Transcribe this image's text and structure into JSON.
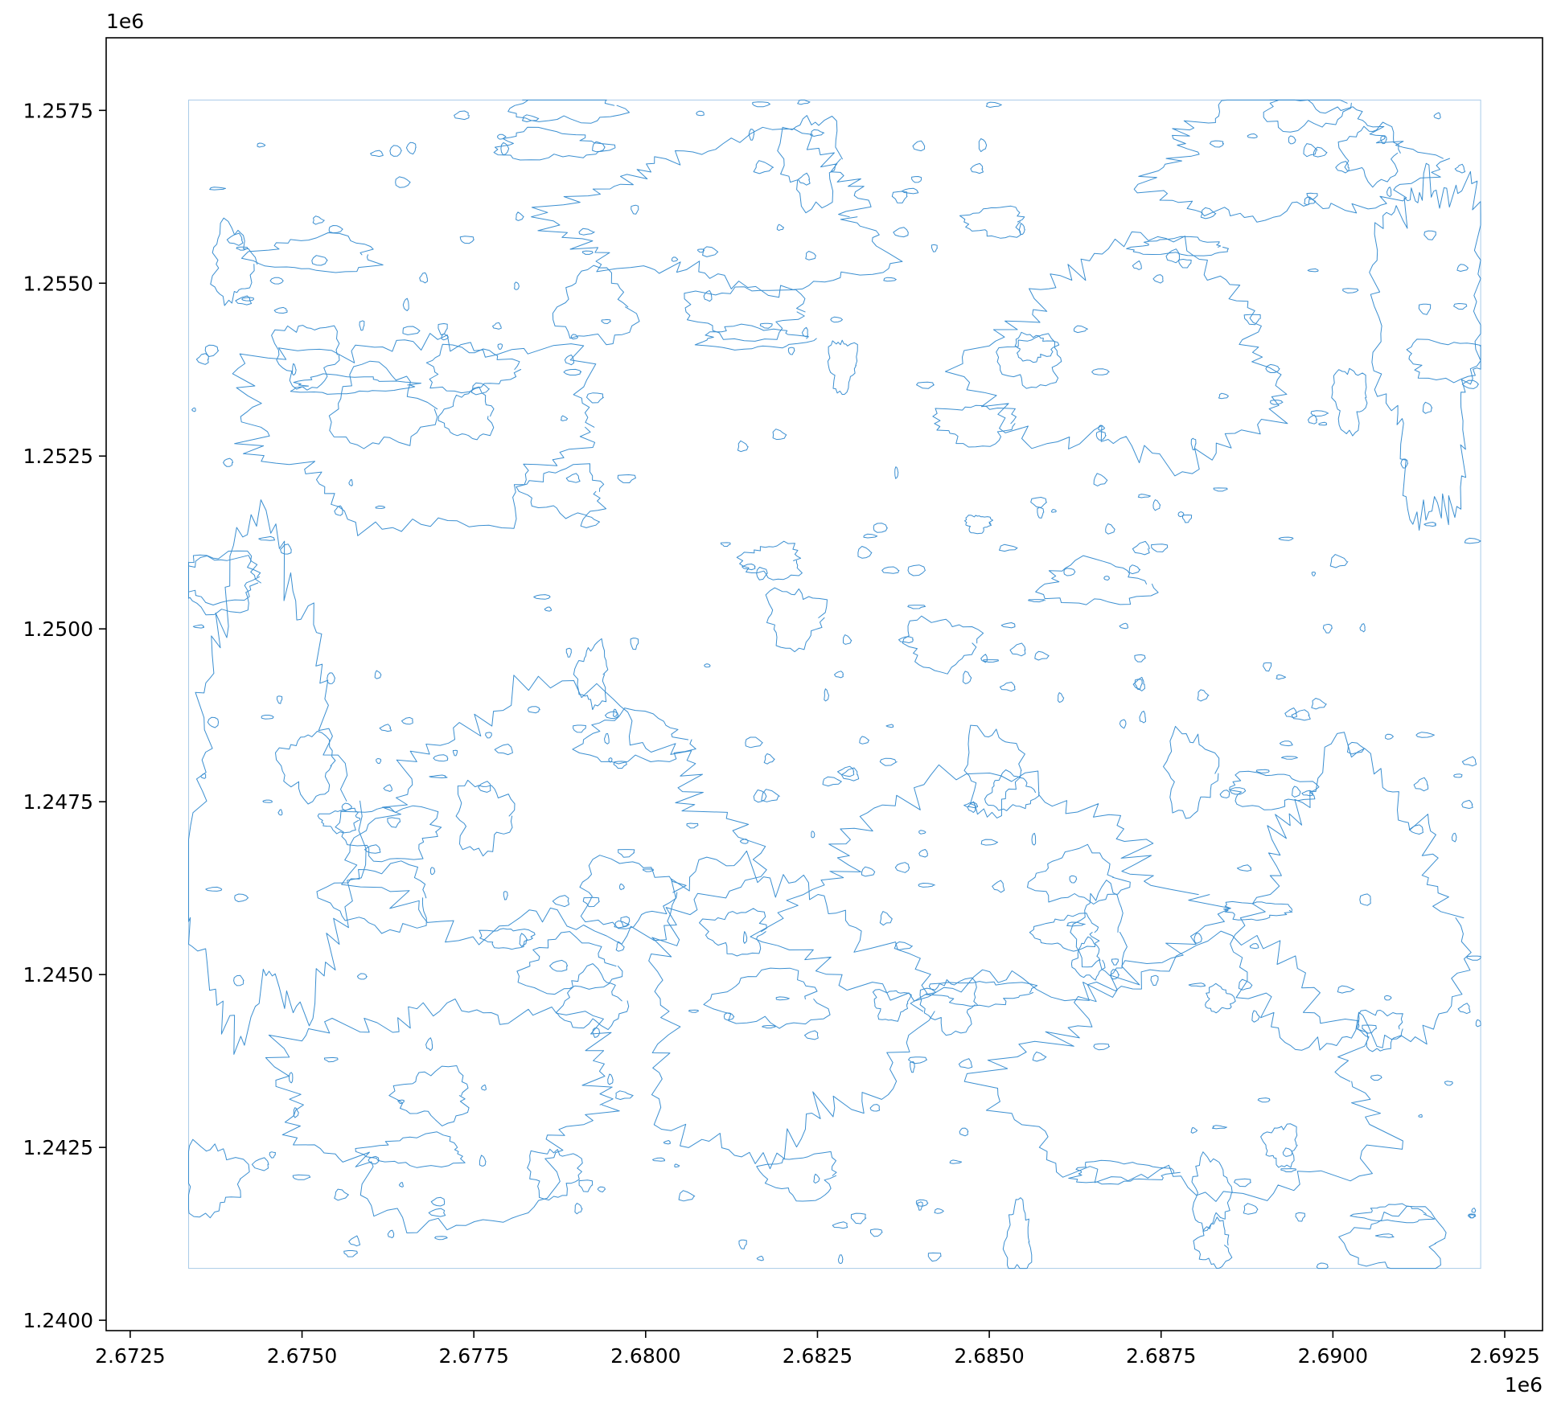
{
  "chart_data": {
    "type": "map",
    "colors": {
      "contour": "#3b8fd1",
      "extent": "#a9cbe8",
      "axes": "#000000"
    },
    "x_offset_label": "1e6",
    "y_offset_label": "1e6",
    "xlim": [
      2.67215,
      2.69305
    ],
    "ylim": [
      1.23985,
      1.25855
    ],
    "x_ticks": [
      2.6725,
      2.675,
      2.6775,
      2.68,
      2.6825,
      2.685,
      2.6875,
      2.69,
      2.6925
    ],
    "x_tick_labels": [
      "2.6725",
      "2.6750",
      "2.6775",
      "2.6800",
      "2.6825",
      "2.6850",
      "2.6875",
      "2.6900",
      "2.6925"
    ],
    "y_ticks": [
      1.24,
      1.2425,
      1.245,
      1.2475,
      1.25,
      1.2525,
      1.255,
      1.2575
    ],
    "y_tick_labels": [
      "1.2400",
      "1.2425",
      "1.2450",
      "1.2475",
      "1.2500",
      "1.2525",
      "1.2550",
      "1.2575"
    ],
    "extent": {
      "xmin": 2.67335,
      "xmax": 2.69215,
      "ymin": 1.24075,
      "ymax": 1.25765
    }
  }
}
